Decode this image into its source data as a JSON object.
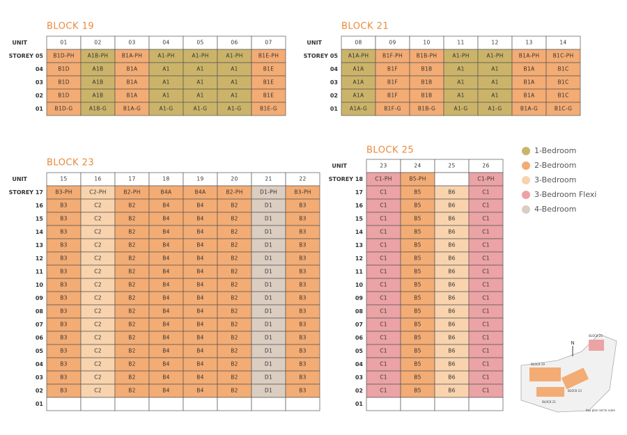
{
  "blocks": [
    {
      "title": "BLOCK 19",
      "unit_label": "UNIT",
      "units": [
        "01",
        "02",
        "03",
        "04",
        "05",
        "06",
        "07"
      ],
      "column_colors": [
        "#f3ac74",
        "#cbb46a",
        "#f3ac74",
        "#cbb46a",
        "#cbb46a",
        "#cbb46a",
        "#f3ac74"
      ],
      "rows": [
        {
          "storey": "STOREY 05",
          "cells": [
            "B1D-PH",
            "A1B-PH",
            "B1A-PH",
            "A1-PH",
            "A1-PH",
            "A1-PH",
            "B1E-PH"
          ]
        },
        {
          "storey": "04",
          "cells": [
            "B1D",
            "A1B",
            "B1A",
            "A1",
            "A1",
            "A1",
            "B1E"
          ]
        },
        {
          "storey": "03",
          "cells": [
            "B1D",
            "A1B",
            "B1A",
            "A1",
            "A1",
            "A1",
            "B1E"
          ]
        },
        {
          "storey": "02",
          "cells": [
            "B1D",
            "A1B",
            "B1A",
            "A1",
            "A1",
            "A1",
            "B1E"
          ]
        },
        {
          "storey": "01",
          "cells": [
            "B1D-G",
            "A1B-G",
            "B1A-G",
            "A1-G",
            "A1-G",
            "A1-G",
            "B1E-G"
          ]
        }
      ]
    },
    {
      "title": "BLOCK 21",
      "unit_label": "UNIT",
      "units": [
        "08",
        "09",
        "10",
        "11",
        "12",
        "13",
        "14"
      ],
      "column_colors": [
        "#cbb46a",
        "#f3ac74",
        "#f3ac74",
        "#cbb46a",
        "#cbb46a",
        "#f3ac74",
        "#f3ac74"
      ],
      "rows": [
        {
          "storey": "STOREY 05",
          "cells": [
            "A1A-PH",
            "B1F-PH",
            "B1B-PH",
            "A1-PH",
            "A1-PH",
            "B1A-PH",
            "B1C-PH"
          ]
        },
        {
          "storey": "04",
          "cells": [
            "A1A",
            "B1F",
            "B1B",
            "A1",
            "A1",
            "B1A",
            "B1C"
          ]
        },
        {
          "storey": "03",
          "cells": [
            "A1A",
            "B1F",
            "B1B",
            "A1",
            "A1",
            "B1A",
            "B1C"
          ]
        },
        {
          "storey": "02",
          "cells": [
            "A1A",
            "B1F",
            "B1B",
            "A1",
            "A1",
            "B1A",
            "B1C"
          ]
        },
        {
          "storey": "01",
          "cells": [
            "A1A-G",
            "B1F-G",
            "B1B-G",
            "A1-G",
            "A1-G",
            "B1A-G",
            "B1C-G"
          ]
        }
      ]
    },
    {
      "title": "BLOCK 23",
      "unit_label": "UNIT",
      "units": [
        "15",
        "16",
        "17",
        "18",
        "19",
        "20",
        "21",
        "22"
      ],
      "column_colors": [
        "#f3ac74",
        "#f8d3ad",
        "#f3ac74",
        "#f3ac74",
        "#f3ac74",
        "#f3ac74",
        "#dccdc1",
        "#f3ac74"
      ],
      "rows": [
        {
          "storey": "STOREY 17",
          "cells": [
            "B3-PH",
            "C2-PH",
            "B2-PH",
            "B4A",
            "B4A",
            "B2-PH",
            "D1-PH",
            "B3-PH"
          ]
        },
        {
          "storey": "16",
          "cells": [
            "B3",
            "C2",
            "B2",
            "B4",
            "B4",
            "B2",
            "D1",
            "B3"
          ]
        },
        {
          "storey": "15",
          "cells": [
            "B3",
            "C2",
            "B2",
            "B4",
            "B4",
            "B2",
            "D1",
            "B3"
          ]
        },
        {
          "storey": "14",
          "cells": [
            "B3",
            "C2",
            "B2",
            "B4",
            "B4",
            "B2",
            "D1",
            "B3"
          ]
        },
        {
          "storey": "13",
          "cells": [
            "B3",
            "C2",
            "B2",
            "B4",
            "B4",
            "B2",
            "D1",
            "B3"
          ]
        },
        {
          "storey": "12",
          "cells": [
            "B3",
            "C2",
            "B2",
            "B4",
            "B4",
            "B2",
            "D1",
            "B3"
          ]
        },
        {
          "storey": "11",
          "cells": [
            "B3",
            "C2",
            "B2",
            "B4",
            "B4",
            "B2",
            "D1",
            "B3"
          ]
        },
        {
          "storey": "10",
          "cells": [
            "B3",
            "C2",
            "B2",
            "B4",
            "B4",
            "B2",
            "D1",
            "B3"
          ]
        },
        {
          "storey": "09",
          "cells": [
            "B3",
            "C2",
            "B2",
            "B4",
            "B4",
            "B2",
            "D1",
            "B3"
          ]
        },
        {
          "storey": "08",
          "cells": [
            "B3",
            "C2",
            "B2",
            "B4",
            "B4",
            "B2",
            "D1",
            "B3"
          ]
        },
        {
          "storey": "07",
          "cells": [
            "B3",
            "C2",
            "B2",
            "B4",
            "B4",
            "B2",
            "D1",
            "B3"
          ]
        },
        {
          "storey": "06",
          "cells": [
            "B3",
            "C2",
            "B2",
            "B4",
            "B4",
            "B2",
            "D1",
            "B3"
          ]
        },
        {
          "storey": "05",
          "cells": [
            "B3",
            "C2",
            "B2",
            "B4",
            "B4",
            "B2",
            "D1",
            "B3"
          ]
        },
        {
          "storey": "04",
          "cells": [
            "B3",
            "C2",
            "B2",
            "B4",
            "B4",
            "B2",
            "D1",
            "B3"
          ]
        },
        {
          "storey": "03",
          "cells": [
            "B3",
            "C2",
            "B2",
            "B4",
            "B4",
            "B2",
            "D1",
            "B3"
          ]
        },
        {
          "storey": "02",
          "cells": [
            "B3",
            "C2",
            "B2",
            "B4",
            "B4",
            "B2",
            "D1",
            "B3"
          ]
        },
        {
          "storey": "01",
          "cells": [
            null,
            null,
            null,
            null,
            null,
            null,
            null,
            null
          ]
        }
      ]
    },
    {
      "title": "BLOCK 25",
      "unit_label": "UNIT",
      "units": [
        "23",
        "24",
        "25",
        "26"
      ],
      "column_colors": [
        "#eba3a5",
        "#f3ac74",
        "#f8d3ad",
        "#eba3a5"
      ],
      "rows": [
        {
          "storey": "STOREY 18",
          "cells": [
            "C1-PH",
            "B5-PH",
            null,
            "C1-PH"
          ]
        },
        {
          "storey": "17",
          "cells": [
            "C1",
            "B5",
            "B6",
            "C1"
          ]
        },
        {
          "storey": "16",
          "cells": [
            "C1",
            "B5",
            "B6",
            "C1"
          ]
        },
        {
          "storey": "15",
          "cells": [
            "C1",
            "B5",
            "B6",
            "C1"
          ]
        },
        {
          "storey": "14",
          "cells": [
            "C1",
            "B5",
            "B6",
            "C1"
          ]
        },
        {
          "storey": "13",
          "cells": [
            "C1",
            "B5",
            "B6",
            "C1"
          ]
        },
        {
          "storey": "12",
          "cells": [
            "C1",
            "B5",
            "B6",
            "C1"
          ]
        },
        {
          "storey": "11",
          "cells": [
            "C1",
            "B5",
            "B6",
            "C1"
          ]
        },
        {
          "storey": "10",
          "cells": [
            "C1",
            "B5",
            "B6",
            "C1"
          ]
        },
        {
          "storey": "09",
          "cells": [
            "C1",
            "B5",
            "B6",
            "C1"
          ]
        },
        {
          "storey": "08",
          "cells": [
            "C1",
            "B5",
            "B6",
            "C1"
          ]
        },
        {
          "storey": "07",
          "cells": [
            "C1",
            "B5",
            "B6",
            "C1"
          ]
        },
        {
          "storey": "06",
          "cells": [
            "C1",
            "B5",
            "B6",
            "C1"
          ]
        },
        {
          "storey": "05",
          "cells": [
            "C1",
            "B5",
            "B6",
            "C1"
          ]
        },
        {
          "storey": "04",
          "cells": [
            "C1",
            "B5",
            "B6",
            "C1"
          ]
        },
        {
          "storey": "03",
          "cells": [
            "C1",
            "B5",
            "B6",
            "C1"
          ]
        },
        {
          "storey": "02",
          "cells": [
            "C1",
            "B5",
            "B6",
            "C1"
          ]
        },
        {
          "storey": "01",
          "cells": [
            null,
            null,
            null,
            null
          ]
        }
      ]
    }
  ],
  "legend": [
    {
      "label": "1-Bedroom",
      "color": "#cbb46a"
    },
    {
      "label": "2-Bedroom",
      "color": "#f3ac74"
    },
    {
      "label": "3-Bedroom",
      "color": "#f8d3ad"
    },
    {
      "label": "3-Bedroom Flexi",
      "color": "#eba3a5"
    },
    {
      "label": "4-Bedroom",
      "color": "#dccdc1"
    }
  ],
  "key_plan": {
    "north": "N",
    "labels": [
      "BLOCK 25",
      "BLOCK 19",
      "BLOCK 23",
      "BLOCK 21"
    ],
    "note": "Key plan not to scale"
  }
}
